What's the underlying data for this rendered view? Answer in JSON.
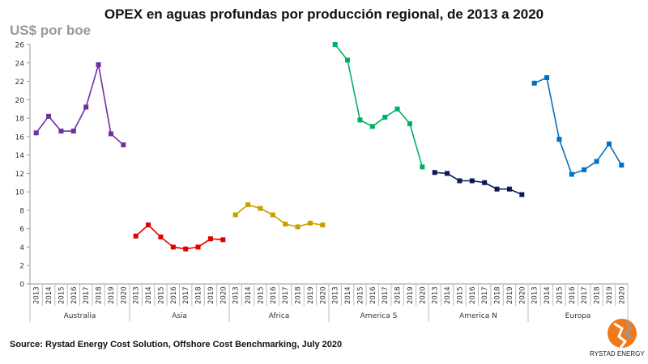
{
  "chart_data": {
    "type": "line",
    "title": "OPEX en aguas profundas por producción regional, de 2013 a 2020",
    "ylabel": "US$ por boe",
    "ylim": [
      0,
      26
    ],
    "yticks": [
      0,
      2,
      4,
      6,
      8,
      10,
      12,
      14,
      16,
      18,
      20,
      22,
      24,
      26
    ],
    "grid": false,
    "years": [
      "2013",
      "2014",
      "2015",
      "2016",
      "2017",
      "2018",
      "2019",
      "2020"
    ],
    "groups": [
      {
        "name": "Australia",
        "color": "#7030a0",
        "values": [
          16.4,
          18.2,
          16.6,
          16.6,
          19.2,
          23.8,
          16.3,
          15.1
        ]
      },
      {
        "name": "Asia",
        "color": "#e00000",
        "values": [
          5.2,
          6.4,
          5.1,
          4.0,
          3.8,
          4.0,
          4.9,
          4.8
        ]
      },
      {
        "name": "Africa",
        "color": "#c9a000",
        "values": [
          7.5,
          8.6,
          8.2,
          7.5,
          6.5,
          6.2,
          6.6,
          6.4
        ]
      },
      {
        "name": "America S",
        "color": "#00b060",
        "values": [
          26.0,
          24.3,
          17.8,
          17.1,
          18.1,
          19.0,
          17.4,
          12.7
        ]
      },
      {
        "name": "America N",
        "color": "#0b1a55",
        "values": [
          12.1,
          12.0,
          11.2,
          11.2,
          11.0,
          10.3,
          10.3,
          9.7
        ]
      },
      {
        "name": "Europa",
        "color": "#0070c0",
        "values": [
          21.8,
          22.4,
          15.7,
          11.9,
          12.4,
          13.3,
          15.2,
          12.9
        ]
      }
    ]
  },
  "source": "Source: Rystad Energy Cost Solution, Offshore Cost Benchmarking, July 2020",
  "logo_text": "RYSTAD ENERGY"
}
